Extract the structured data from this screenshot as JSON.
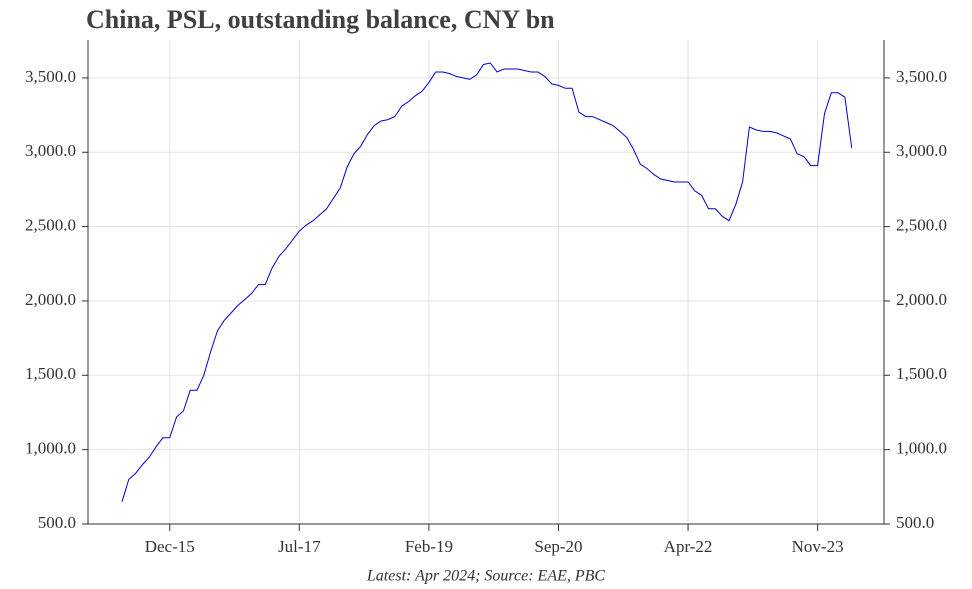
{
  "chart_data": {
    "type": "line",
    "title": "China, PSL, outstanding balance, CNY bn",
    "footnote": "Latest: Apr 2024; Source: EAE, PBC",
    "categories": [
      "May-15",
      "Jun-15",
      "Jul-15",
      "Aug-15",
      "Sep-15",
      "Oct-15",
      "Nov-15",
      "Dec-15",
      "Jan-16",
      "Feb-16",
      "Mar-16",
      "Apr-16",
      "May-16",
      "Jun-16",
      "Jul-16",
      "Aug-16",
      "Sep-16",
      "Oct-16",
      "Nov-16",
      "Dec-16",
      "Jan-17",
      "Feb-17",
      "Mar-17",
      "Apr-17",
      "May-17",
      "Jun-17",
      "Jul-17",
      "Aug-17",
      "Sep-17",
      "Oct-17",
      "Nov-17",
      "Dec-17",
      "Jan-18",
      "Feb-18",
      "Mar-18",
      "Apr-18",
      "May-18",
      "Jun-18",
      "Jul-18",
      "Aug-18",
      "Sep-18",
      "Oct-18",
      "Nov-18",
      "Dec-18",
      "Jan-19",
      "Feb-19",
      "Mar-19",
      "Apr-19",
      "May-19",
      "Jun-19",
      "Jul-19",
      "Aug-19",
      "Sep-19",
      "Oct-19",
      "Nov-19",
      "Dec-19",
      "Jan-20",
      "Feb-20",
      "Mar-20",
      "Apr-20",
      "May-20",
      "Jun-20",
      "Jul-20",
      "Aug-20",
      "Sep-20",
      "Oct-20",
      "Nov-20",
      "Dec-20",
      "Jan-21",
      "Feb-21",
      "Mar-21",
      "Apr-21",
      "May-21",
      "Jun-21",
      "Jul-21",
      "Aug-21",
      "Sep-21",
      "Oct-21",
      "Nov-21",
      "Dec-21",
      "Jan-22",
      "Feb-22",
      "Mar-22",
      "Apr-22",
      "May-22",
      "Jun-22",
      "Jul-22",
      "Aug-22",
      "Sep-22",
      "Oct-22",
      "Nov-22",
      "Dec-22",
      "Jan-23",
      "Feb-23",
      "Mar-23",
      "Apr-23",
      "May-23",
      "Jun-23",
      "Jul-23",
      "Aug-23",
      "Sep-23",
      "Oct-23",
      "Nov-23",
      "Dec-23",
      "Jan-24",
      "Feb-24",
      "Mar-24",
      "Apr-24"
    ],
    "series": [
      {
        "color": "#0000cc",
        "values": [
          650,
          800,
          840,
          900,
          950,
          1020,
          1080,
          1080,
          1220,
          1260,
          1400,
          1400,
          1500,
          1660,
          1800,
          1870,
          1920,
          1970,
          2010,
          2050,
          2110,
          2110,
          2220,
          2300,
          2350,
          2410,
          2470,
          2510,
          2540,
          2580,
          2620,
          2690,
          2760,
          2900,
          2990,
          3040,
          3120,
          3180,
          3210,
          3220,
          3240,
          3310,
          3340,
          3380,
          3410,
          3470,
          3540,
          3540,
          3530,
          3510,
          3500,
          3490,
          3520,
          3590,
          3600,
          3540,
          3560,
          3560,
          3560,
          3550,
          3540,
          3540,
          3510,
          3460,
          3450,
          3430,
          3430,
          3270,
          3240,
          3240,
          3220,
          3200,
          3180,
          3140,
          3100,
          3020,
          2920,
          2890,
          2850,
          2820,
          2810,
          2800,
          2800,
          2800,
          2740,
          2710,
          2620,
          2620,
          2570,
          2540,
          2650,
          2800,
          3170,
          3150,
          3140,
          3140,
          3130,
          3110,
          3090,
          2990,
          2970,
          2910,
          2910,
          3260,
          3400,
          3400,
          3370,
          3030
        ]
      }
    ],
    "xticks": [
      "Dec-15",
      "Jul-17",
      "Feb-19",
      "Sep-20",
      "Apr-22",
      "Nov-23"
    ],
    "ylim": [
      500,
      3755
    ],
    "yticks": [
      {
        "value": 500,
        "label": "500.0"
      },
      {
        "value": 1000,
        "label": "1,000.0"
      },
      {
        "value": 1500,
        "label": "1,500.0"
      },
      {
        "value": 2000,
        "label": "2,000.0"
      },
      {
        "value": 2500,
        "label": "2,500.0"
      },
      {
        "value": 3000,
        "label": "3,000.0"
      },
      {
        "value": 3500,
        "label": "3,500.0"
      }
    ],
    "y2lim": [
      500,
      3755
    ],
    "grid": true
  }
}
